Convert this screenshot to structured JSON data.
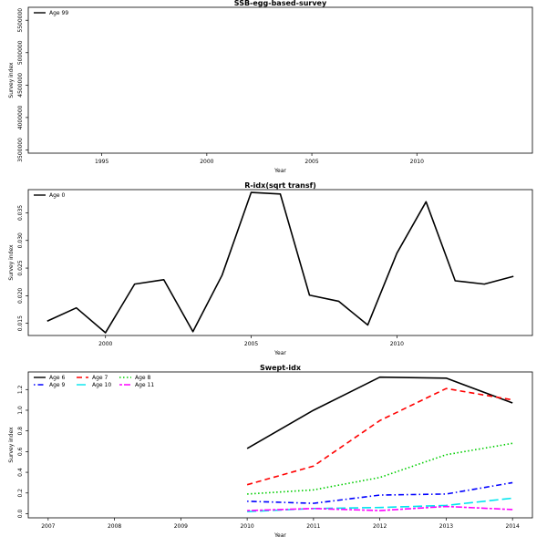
{
  "chart_data": [
    {
      "type": "line",
      "title": "SSB-egg-based-survey",
      "xlabel": "Year",
      "ylabel": "Survey index",
      "xlim": [
        1991.5,
        2015.5
      ],
      "ylim": [
        3450000,
        5700000
      ],
      "xticks": [
        1995,
        2000,
        2005,
        2010
      ],
      "yticks": [
        3500000,
        4000000,
        4500000,
        5000000,
        5500000
      ],
      "ytick_labels": [
        "3500000",
        "4000000",
        "4500000",
        "5000000",
        "5500000"
      ],
      "legend_position": "top-left",
      "legend_columns": 1,
      "series": [
        {
          "name": "Age 99",
          "color": "#000000",
          "dash": "solid",
          "x": [],
          "y": []
        }
      ]
    },
    {
      "type": "line",
      "title": "R-idx(sqrt transf)",
      "xlabel": "Year",
      "ylabel": "Survey index",
      "xlim": [
        1997.35,
        2014.65
      ],
      "ylim": [
        0.0128,
        0.0392
      ],
      "xticks": [
        2000,
        2005,
        2010
      ],
      "yticks": [
        0.015,
        0.02,
        0.025,
        0.03,
        0.035
      ],
      "ytick_labels": [
        "0.015",
        "0.020",
        "0.025",
        "0.030",
        "0.035"
      ],
      "legend_position": "top-left",
      "legend_columns": 1,
      "series": [
        {
          "name": "Age 0",
          "color": "#000000",
          "dash": "solid",
          "x": [
            1998,
            1999,
            2000,
            2001,
            2002,
            2003,
            2004,
            2005,
            2006,
            2007,
            2008,
            2009,
            2010,
            2011,
            2012,
            2013,
            2014
          ],
          "y": [
            0.0154,
            0.0178,
            0.0133,
            0.0221,
            0.0229,
            0.0135,
            0.0237,
            0.0387,
            0.0384,
            0.0201,
            0.019,
            0.0147,
            0.0277,
            0.037,
            0.0227,
            0.0221,
            0.0235
          ]
        }
      ]
    },
    {
      "type": "line",
      "title": "Swept-idx",
      "xlabel": "Year",
      "ylabel": "Survey index",
      "xlim": [
        2006.7,
        2014.3
      ],
      "ylim": [
        -0.04,
        1.37
      ],
      "xticks": [
        2007,
        2008,
        2009,
        2010,
        2011,
        2012,
        2013,
        2014
      ],
      "yticks": [
        0.0,
        0.2,
        0.4,
        0.6,
        0.8,
        1.0,
        1.2
      ],
      "ytick_labels": [
        "0.0",
        "0.2",
        "0.4",
        "0.6",
        "0.8",
        "1.0",
        "1.2"
      ],
      "legend_position": "top-left",
      "legend_columns": 3,
      "series": [
        {
          "name": "Age 6",
          "color": "#000000",
          "dash": "solid",
          "x": [
            2010,
            2011,
            2012,
            2013,
            2014
          ],
          "y": [
            0.63,
            1.0,
            1.32,
            1.31,
            1.07
          ]
        },
        {
          "name": "Age 7",
          "color": "#ff0000",
          "dash": "dashed",
          "x": [
            2010,
            2011,
            2012,
            2013,
            2014
          ],
          "y": [
            0.28,
            0.46,
            0.9,
            1.21,
            1.1
          ]
        },
        {
          "name": "Age 8",
          "color": "#00cd00",
          "dash": "dotted",
          "x": [
            2010,
            2011,
            2012,
            2013,
            2014
          ],
          "y": [
            0.19,
            0.23,
            0.35,
            0.57,
            0.68
          ]
        },
        {
          "name": "Age 9",
          "color": "#0000ff",
          "dash": "dotdash",
          "x": [
            2010,
            2011,
            2012,
            2013,
            2014
          ],
          "y": [
            0.12,
            0.1,
            0.18,
            0.19,
            0.3
          ]
        },
        {
          "name": "Age 10",
          "color": "#00e5ee",
          "dash": "longdash",
          "x": [
            2010,
            2011,
            2012,
            2013,
            2014
          ],
          "y": [
            0.02,
            0.05,
            0.06,
            0.08,
            0.15
          ]
        },
        {
          "name": "Age 11",
          "color": "#ff00ff",
          "dash": "twodash",
          "x": [
            2010,
            2011,
            2012,
            2013,
            2014
          ],
          "y": [
            0.03,
            0.05,
            0.03,
            0.07,
            0.04
          ]
        }
      ]
    }
  ]
}
